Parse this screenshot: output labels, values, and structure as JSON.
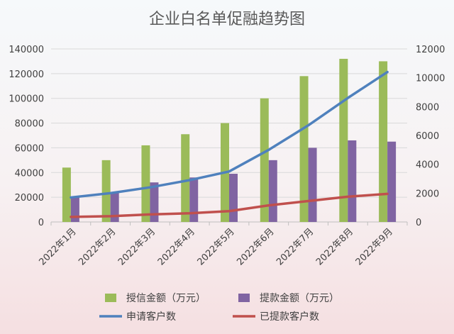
{
  "chart_data": {
    "type": "bar",
    "title": "企业白名单促融趋势图",
    "categories": [
      "2022年1月",
      "2022年2月",
      "2022年3月",
      "2022年4月",
      "2022年5月",
      "2022年6月",
      "2022年7月",
      "2022年8月",
      "2022年9月"
    ],
    "y_left": {
      "min": 0,
      "max": 140000,
      "step": 20000,
      "ticks": [
        "0",
        "20000",
        "40000",
        "60000",
        "80000",
        "100000",
        "120000",
        "140000"
      ]
    },
    "y_right": {
      "min": 0,
      "max": 12000,
      "step": 2000,
      "ticks": [
        "0",
        "2000",
        "4000",
        "6000",
        "8000",
        "10000",
        "12000"
      ]
    },
    "grid": true,
    "legend_position": "bottom",
    "bar_series": [
      {
        "name": "授信金额（万元）",
        "color": "#9bbb59",
        "axis": "left",
        "values": [
          44000,
          50000,
          62000,
          71000,
          80000,
          100000,
          118000,
          132000,
          130000
        ]
      },
      {
        "name": "提款金额（万元）",
        "color": "#8064a2",
        "axis": "left",
        "values": [
          20000,
          24000,
          32000,
          36000,
          39000,
          50000,
          60000,
          66000,
          65000
        ]
      }
    ],
    "line_series": [
      {
        "name": "申请客户数",
        "color": "#4f81bd",
        "axis": "right",
        "values": [
          1700,
          2000,
          2400,
          2900,
          3500,
          5000,
          6700,
          8600,
          10400
        ]
      },
      {
        "name": "已提款客户数",
        "color": "#c0504d",
        "axis": "right",
        "values": [
          350,
          400,
          520,
          600,
          750,
          1150,
          1450,
          1750,
          1950
        ]
      }
    ]
  }
}
